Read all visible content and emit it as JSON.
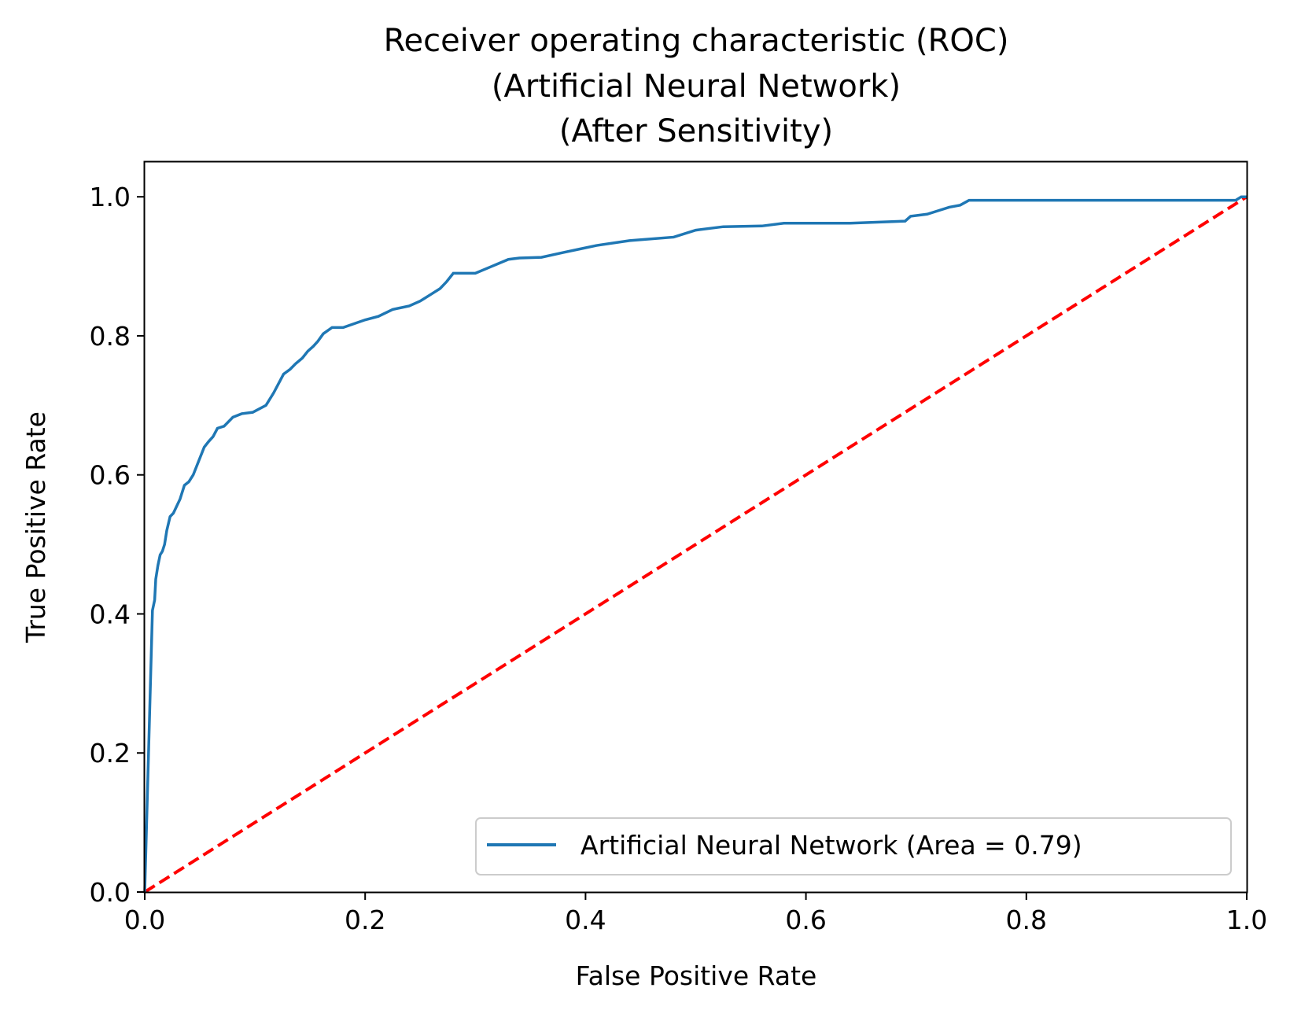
{
  "chart_data": {
    "type": "line",
    "title": [
      "Receiver operating characteristic (ROC)",
      "(Artificial Neural Network)",
      "(After Sensitivity)"
    ],
    "xlabel": "False Positive Rate",
    "ylabel": "True Positive Rate",
    "xlim": [
      0.0,
      1.0
    ],
    "ylim": [
      0.0,
      1.05
    ],
    "xticks": [
      "0.0",
      "0.2",
      "0.4",
      "0.6",
      "0.8",
      "1.0"
    ],
    "yticks": [
      "0.0",
      "0.2",
      "0.4",
      "0.6",
      "0.8",
      "1.0"
    ],
    "grid": false,
    "legend_position": "lower-right",
    "series": [
      {
        "name": "Artificial Neural Network (Area = 0.79)",
        "color": "#1f77b4",
        "style": "solid",
        "x": [
          0.0,
          0.007,
          0.009,
          0.01,
          0.012,
          0.014,
          0.016,
          0.018,
          0.02,
          0.023,
          0.026,
          0.029,
          0.032,
          0.036,
          0.04,
          0.044,
          0.049,
          0.054,
          0.058,
          0.062,
          0.066,
          0.072,
          0.08,
          0.088,
          0.098,
          0.11,
          0.117,
          0.121,
          0.126,
          0.132,
          0.137,
          0.143,
          0.148,
          0.153,
          0.157,
          0.162,
          0.17,
          0.18,
          0.2,
          0.212,
          0.225,
          0.24,
          0.25,
          0.26,
          0.268,
          0.274,
          0.28,
          0.3,
          0.315,
          0.33,
          0.34,
          0.36,
          0.38,
          0.395,
          0.41,
          0.44,
          0.48,
          0.5,
          0.525,
          0.56,
          0.58,
          0.64,
          0.69,
          0.695,
          0.71,
          0.72,
          0.73,
          0.74,
          0.748,
          0.8,
          0.9,
          0.99,
          0.995,
          1.0
        ],
        "y": [
          0.0,
          0.405,
          0.42,
          0.45,
          0.47,
          0.485,
          0.49,
          0.5,
          0.52,
          0.54,
          0.545,
          0.555,
          0.565,
          0.585,
          0.59,
          0.6,
          0.62,
          0.64,
          0.648,
          0.655,
          0.667,
          0.67,
          0.683,
          0.688,
          0.69,
          0.7,
          0.718,
          0.73,
          0.745,
          0.752,
          0.76,
          0.768,
          0.778,
          0.785,
          0.792,
          0.803,
          0.812,
          0.812,
          0.823,
          0.828,
          0.838,
          0.843,
          0.85,
          0.86,
          0.868,
          0.878,
          0.89,
          0.89,
          0.9,
          0.91,
          0.912,
          0.913,
          0.92,
          0.925,
          0.93,
          0.937,
          0.942,
          0.952,
          0.957,
          0.958,
          0.962,
          0.962,
          0.965,
          0.972,
          0.975,
          0.98,
          0.985,
          0.988,
          0.995,
          0.995,
          0.995,
          0.995,
          1.0,
          1.0
        ]
      },
      {
        "name": "",
        "color": "#ff0000",
        "style": "dashed",
        "x": [
          0.0,
          1.0
        ],
        "y": [
          0.0,
          1.0
        ]
      }
    ]
  }
}
